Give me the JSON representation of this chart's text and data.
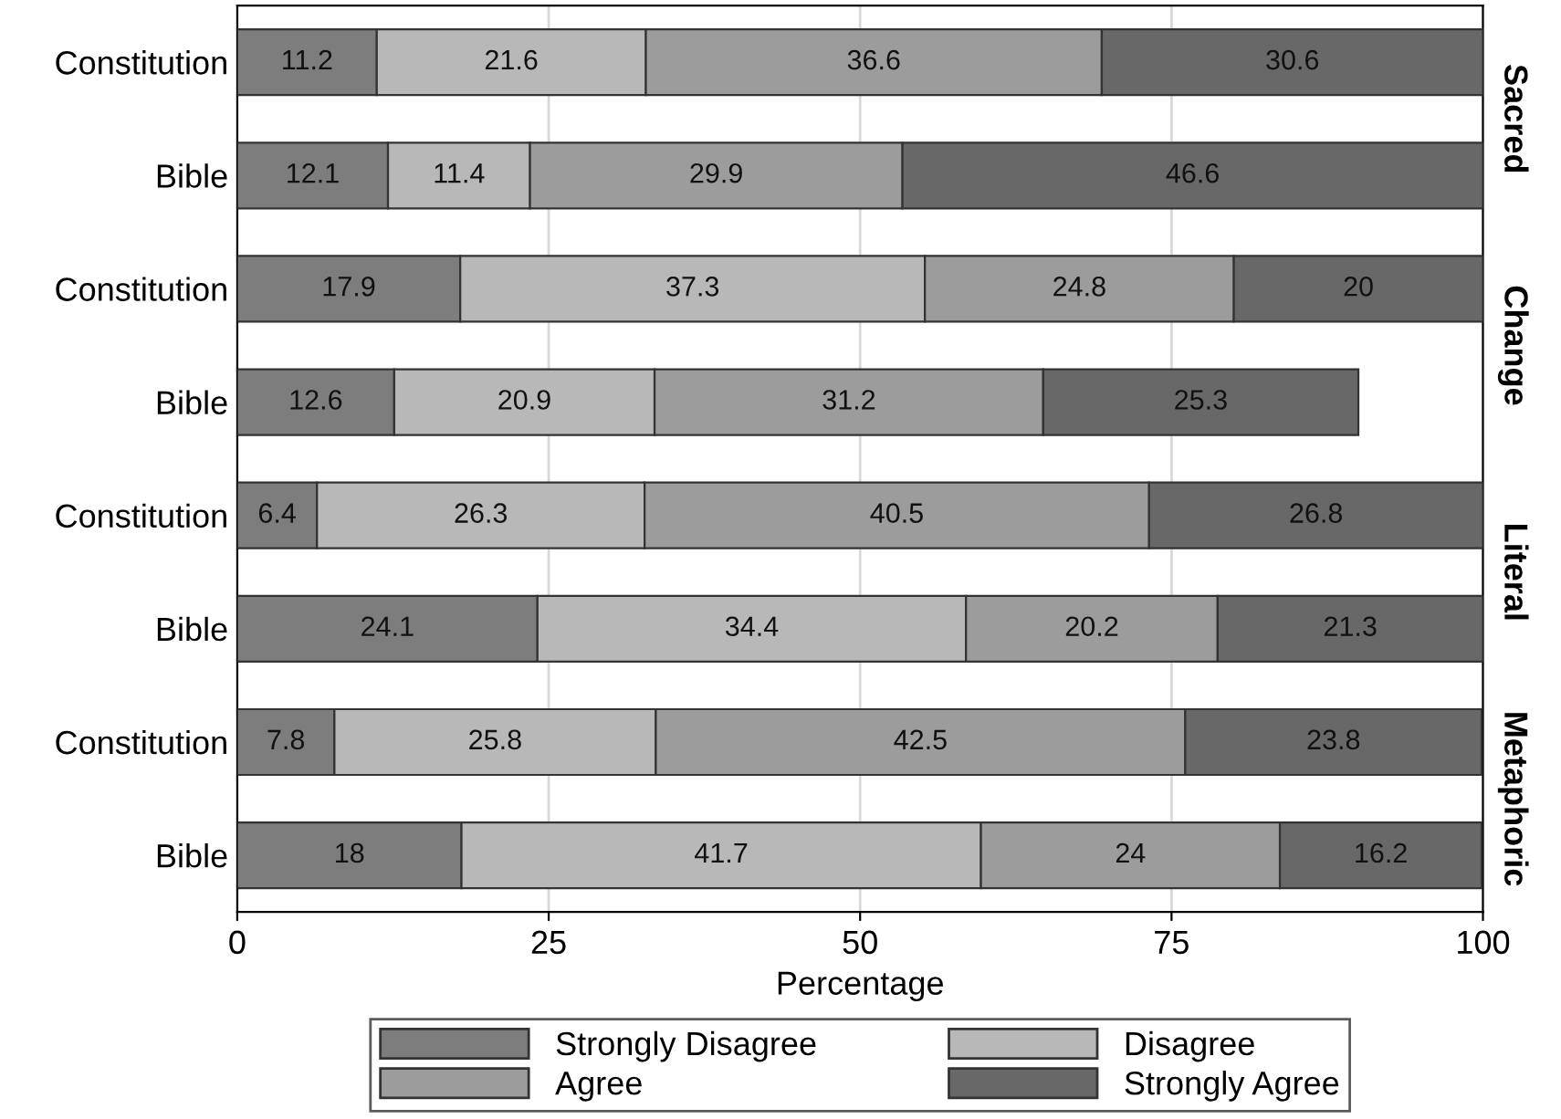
{
  "chart_data": {
    "type": "bar",
    "orientation": "horizontal",
    "stacked": true,
    "xlabel": "Percentage",
    "categories": [
      "Constitution",
      "Bible",
      "Constitution",
      "Bible",
      "Constitution",
      "Bible",
      "Constitution",
      "Bible"
    ],
    "series": [
      {
        "name": "Strongly Disagree",
        "color": "#7d7d7d",
        "values": [
          11.2,
          12.1,
          17.9,
          12.6,
          6.4,
          24.1,
          7.8,
          18
        ]
      },
      {
        "name": "Disagree",
        "color": "#b8b8b8",
        "values": [
          21.6,
          11.4,
          37.3,
          20.9,
          26.3,
          34.4,
          25.8,
          41.7
        ]
      },
      {
        "name": "Agree",
        "color": "#9c9c9c",
        "values": [
          36.6,
          29.9,
          24.8,
          31.2,
          40.5,
          20.2,
          42.5,
          24
        ]
      },
      {
        "name": "Strongly Agree",
        "color": "#686868",
        "values": [
          30.6,
          46.6,
          20,
          25.3,
          26.8,
          21.3,
          23.8,
          16.2
        ]
      }
    ],
    "xlim": [
      0,
      100
    ],
    "xticks": [
      0,
      25,
      50,
      75,
      100
    ],
    "grid": "x",
    "legend": "bottom",
    "data_labels": true,
    "annotations": [
      "Sacred",
      "Change",
      "Literal",
      "Metaphoric"
    ]
  }
}
